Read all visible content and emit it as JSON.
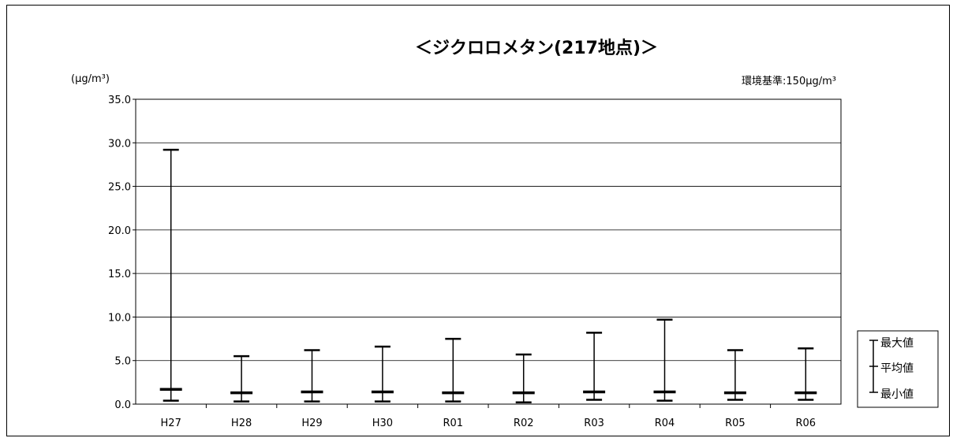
{
  "chart_data": {
    "type": "range",
    "title": "＜ジクロロメタン(217地点)＞",
    "ylabel": "(μg/m³)",
    "annotation": "環境基準:150μg/m³",
    "ylim": [
      0,
      35
    ],
    "yticks": [
      "0.0",
      "5.0",
      "10.0",
      "15.0",
      "20.0",
      "25.0",
      "30.0",
      "35.0"
    ],
    "grid": true,
    "categories": [
      "H27",
      "H28",
      "H29",
      "H30",
      "R01",
      "R02",
      "R03",
      "R04",
      "R05",
      "R06"
    ],
    "series": [
      {
        "name": "最大値",
        "values": [
          29.2,
          5.5,
          6.2,
          6.6,
          7.5,
          5.7,
          8.2,
          9.7,
          6.2,
          6.4
        ]
      },
      {
        "name": "平均値",
        "values": [
          1.7,
          1.3,
          1.4,
          1.4,
          1.3,
          1.3,
          1.4,
          1.4,
          1.3,
          1.3
        ]
      },
      {
        "name": "最小値",
        "values": [
          0.4,
          0.3,
          0.3,
          0.3,
          0.3,
          0.2,
          0.5,
          0.4,
          0.5,
          0.5
        ]
      }
    ],
    "legend": {
      "position": "right",
      "items": [
        "最大値",
        "平均値",
        "最小値"
      ]
    }
  }
}
